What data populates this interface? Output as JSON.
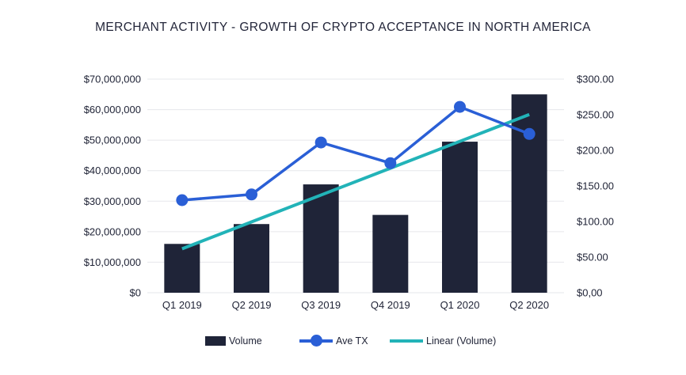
{
  "chart_data": {
    "type": "bar",
    "title": "MERCHANT ACTIVITY - GROWTH OF CRYPTO ACCEPTANCE IN NORTH AMERICA",
    "categories": [
      "Q1 2019",
      "Q2 2019",
      "Q3 2019",
      "Q4 2019",
      "Q1 2020",
      "Q2 2020"
    ],
    "series": [
      {
        "name": "Volume",
        "type": "bar",
        "axis": "left",
        "values": [
          16000000,
          22500000,
          35500000,
          25500000,
          49500000,
          65000000
        ],
        "color": "#1f2438"
      },
      {
        "name": "Ave TX",
        "type": "line",
        "axis": "right",
        "values": [
          130,
          138,
          211,
          182,
          261,
          223
        ],
        "color": "#2a5fd6"
      },
      {
        "name": "Linear (Volume)",
        "type": "trendline",
        "axis": "left",
        "values": [
          14400000,
          23200000,
          32000000,
          40800000,
          49600000,
          58400000
        ],
        "color": "#22b3b8"
      }
    ],
    "left_axis": {
      "ylim": [
        0,
        70000000
      ],
      "tick_labels": [
        "$0",
        "$10,000,000",
        "$20,000,000",
        "$30,000,000",
        "$40,000,000",
        "$50,000,000",
        "$60,000,000",
        "$70,000,000"
      ]
    },
    "right_axis": {
      "ylim": [
        0,
        300
      ],
      "tick_labels": [
        "$0,00",
        "$50.00",
        "$100.00",
        "$150.00",
        "$200.00",
        "$250.00",
        "$300.00"
      ]
    },
    "grid": true,
    "legend_position": "bottom"
  }
}
